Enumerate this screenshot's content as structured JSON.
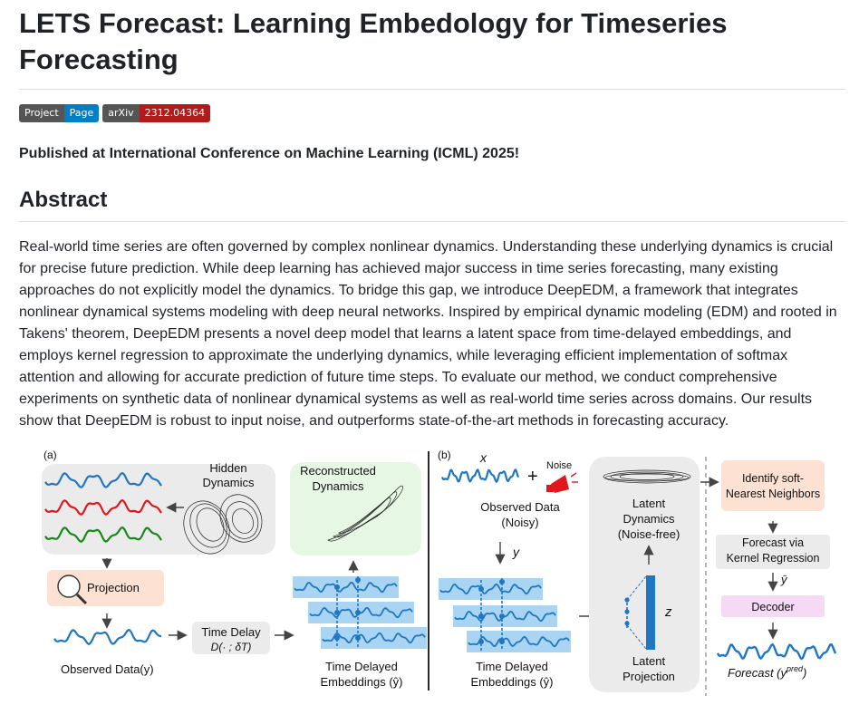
{
  "title": "LETS Forecast: Learning Embedology for Timeseries Forecasting",
  "badges": [
    {
      "left": "Project",
      "right": "Page",
      "color": "#007ec6"
    },
    {
      "left": "arXiv",
      "right": "2312.04364",
      "color": "#b31b1b"
    }
  ],
  "published": "Published at International Conference on Machine Learning (ICML) 2025!",
  "abstract_heading": "Abstract",
  "abstract": "Real-world time series are often governed by complex nonlinear dynamics. Understanding these underlying dynamics is crucial for precise future prediction. While deep learning has achieved major success in time series forecasting, many existing approaches do not explicitly model the dynamics. To bridge this gap, we introduce DeepEDM, a framework that integrates nonlinear dynamical systems modeling with deep neural networks. Inspired by empirical dynamic modeling (EDM) and rooted in Takens' theorem, DeepEDM presents a novel deep model that learns a latent space from time-delayed embeddings, and employs kernel regression to approximate the underlying dynamics, while leveraging efficient implementation of softmax attention and allowing for accurate prediction of future time steps. To evaluate our method, we conduct comprehensive experiments on synthetic data of nonlinear dynamical systems as well as real-world time series across domains. Our results show that DeepEDM is robust to input noise, and outperforms state-of-the-art methods in forecasting accuracy.",
  "figure": {
    "panel_a": "(a)",
    "panel_b": "(b)",
    "hidden_dynamics": [
      "Hidden",
      "Dynamics"
    ],
    "projection": "Projection",
    "observed_data_a": "Observed Data(y)",
    "time_delay": "Time Delay",
    "time_delay_op": "D(· ; δT)",
    "reconstructed": [
      "Reconstructed",
      "Dynamics"
    ],
    "tde_a": [
      "Time Delayed",
      "Embeddings (ŷ)"
    ],
    "x_label": "x",
    "noise": "Noise",
    "observed_noisy": [
      "Observed Data",
      "(Noisy)"
    ],
    "y_label": "y",
    "tde_b": [
      "Time Delayed",
      "Embeddings (ŷ)"
    ],
    "latent_dynamics": [
      "Latent",
      "Dynamics",
      "(Noise-free)"
    ],
    "z_label": "z",
    "latent_projection": [
      "Latent",
      "Projection"
    ],
    "snn": [
      "Identify soft-",
      "Nearest Neighbors"
    ],
    "kernel": [
      "Forecast via",
      "Kernel Regression"
    ],
    "ybar": "ȳ",
    "decoder": "Decoder",
    "forecast": "Forecast (y",
    "forecast_sup": "pred",
    "colors": {
      "blue": "#1f77c4",
      "red": "#e0181b",
      "green": "#168a16",
      "salmon": "#fde1d3",
      "mint": "#e6f7e4",
      "pink": "#f6d9f4",
      "band": "#a9d4f2",
      "panel": "#ebebeb"
    }
  }
}
